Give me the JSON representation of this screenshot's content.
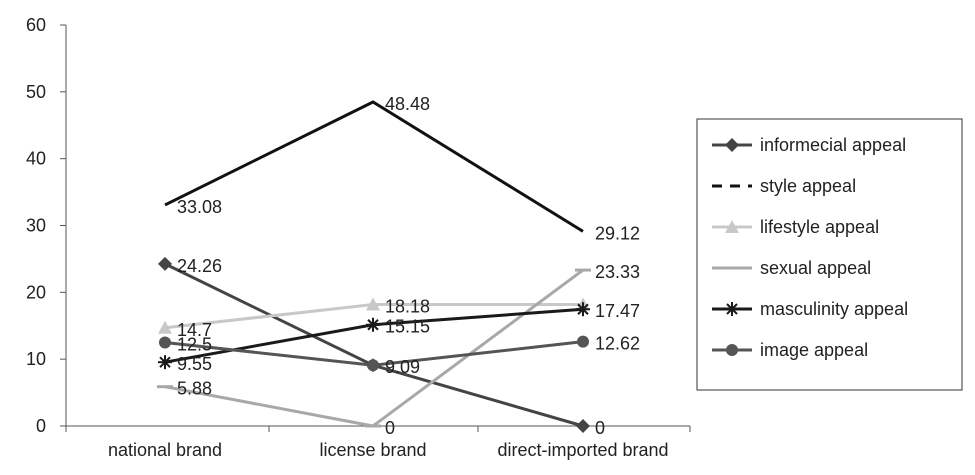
{
  "chart_data": {
    "type": "line",
    "categories": [
      "national brand",
      "license brand",
      "direct-imported brand"
    ],
    "ylim": [
      0,
      60
    ],
    "yticks": [
      0,
      10,
      20,
      30,
      40,
      50,
      60
    ],
    "grid": false,
    "legend_position": "right",
    "series": [
      {
        "name": "informecial appeal",
        "values": [
          24.26,
          9.09,
          0
        ],
        "color": "#444444",
        "marker": "diamond",
        "dash": "solid",
        "labels": [
          "24.26",
          "9.09",
          "0"
        ]
      },
      {
        "name": "style appeal",
        "values": [
          33.08,
          48.48,
          29.12
        ],
        "color": "#111111",
        "marker": "none",
        "dash": "dashed",
        "labels": [
          "33.08",
          "48.48",
          "29.12"
        ]
      },
      {
        "name": "lifestyle appeal",
        "values": [
          14.7,
          18.18,
          18.18
        ],
        "color": "#c8c8c8",
        "marker": "triangle",
        "dash": "solid",
        "labels": [
          "14.7",
          "18.18",
          ""
        ]
      },
      {
        "name": "sexual appeal",
        "values": [
          5.88,
          0,
          23.33
        ],
        "color": "#a8a8a8",
        "marker": "dash",
        "dash": "solid",
        "labels": [
          "5.88",
          "0",
          "23.33"
        ]
      },
      {
        "name": "masculinity appeal",
        "values": [
          9.55,
          15.15,
          17.47
        ],
        "color": "#1a1a1a",
        "marker": "star",
        "dash": "solid",
        "labels": [
          "9.55",
          "15.15",
          "17.47"
        ]
      },
      {
        "name": "image appeal",
        "values": [
          12.5,
          9.09,
          12.62
        ],
        "color": "#555555",
        "marker": "circle",
        "dash": "solid",
        "labels": [
          "12.5",
          "",
          "12.62"
        ]
      }
    ]
  }
}
